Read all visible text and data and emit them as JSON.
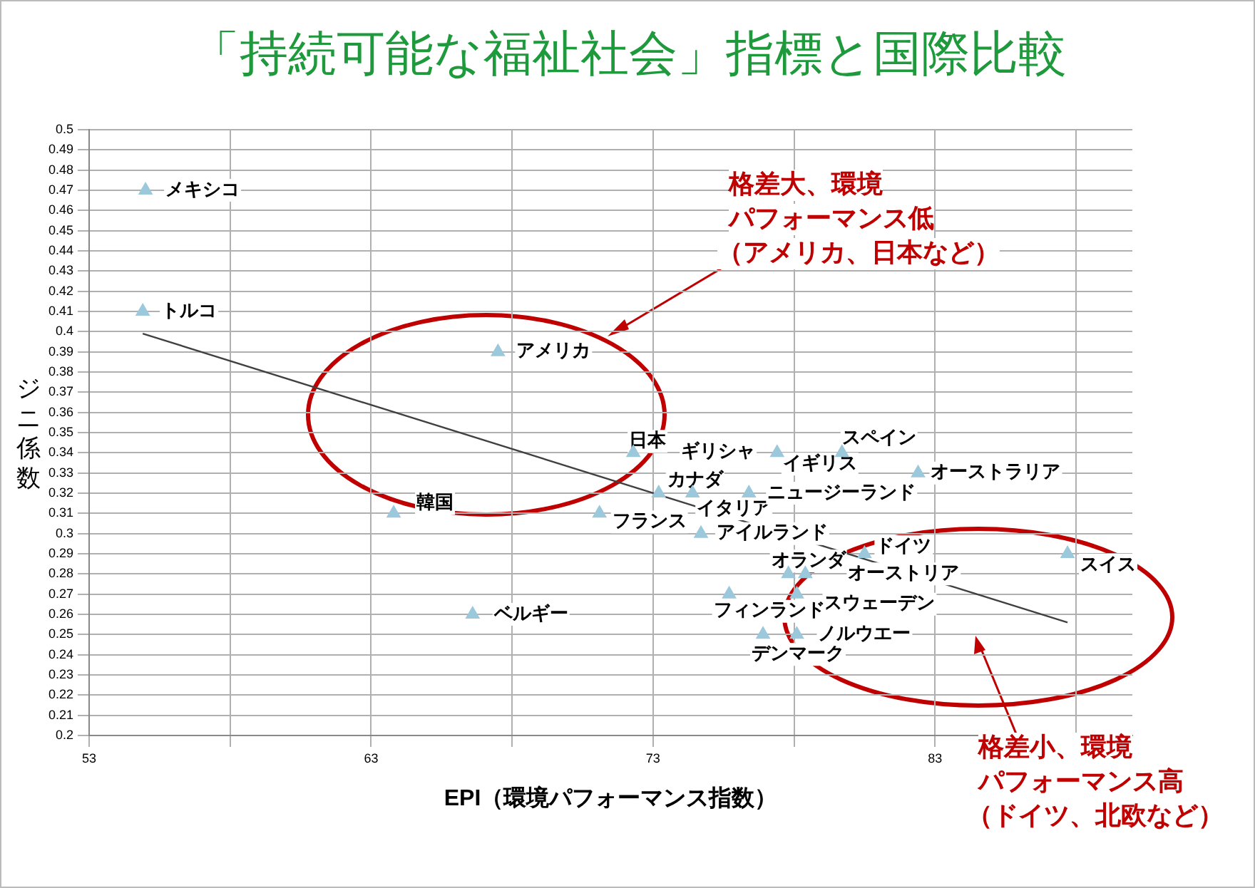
{
  "chart_data": {
    "type": "scatter",
    "title": "「持続可能な福祉社会」指標と国際比較",
    "xlabel": "EPI（環境パフォーマンス指数）",
    "ylabel": "ジニ係数",
    "series": [
      {
        "type": "scatter",
        "color": "#9cc8dc",
        "marker": "triangle",
        "x": [
          55.0,
          54.9,
          67.5,
          63.8,
          66.6,
          71.1,
          72.3,
          null,
          73.2,
          74.4,
          79.7,
          77.4,
          82.4,
          76.4,
          74.7,
          80.5,
          87.7,
          77.8,
          78.4,
          78.1,
          75.7,
          76.9,
          78.1
        ],
        "values": [
          0.47,
          0.41,
          0.39,
          0.31,
          0.26,
          0.31,
          0.34,
          null,
          0.32,
          0.32,
          0.34,
          0.34,
          0.33,
          0.32,
          0.3,
          0.29,
          0.29,
          0.28,
          0.28,
          0.27,
          0.27,
          0.25,
          0.25
        ]
      },
      {
        "type": "line",
        "color": "#404040",
        "marker": "none",
        "x": [
          54.9,
          87.7
        ],
        "values": [
          0.399,
          0.256
        ]
      }
    ],
    "xlim": [
      53,
      90
    ],
    "xticks": [
      53,
      {
        "value": 58,
        "label": null
      },
      63,
      {
        "value": 68,
        "label": null
      },
      73,
      {
        "value": 78,
        "label": null
      },
      83,
      {
        "value": 88,
        "label": null
      }
    ],
    "ylim": [
      0.2,
      0.5
    ],
    "yticks": [
      0.2,
      0.21,
      0.22,
      0.23,
      0.24,
      0.25,
      0.26,
      0.27,
      0.28,
      0.29,
      0.3,
      0.31,
      0.32,
      0.33,
      0.34,
      0.35,
      0.36,
      0.37,
      0.38,
      0.39,
      0.4,
      0.41,
      0.42,
      0.43,
      0.44,
      0.45,
      0.46,
      0.47,
      0.48,
      0.49,
      0.5
    ],
    "grid": true,
    "legend": false,
    "annotations": [
      {
        "text": "メキシコ",
        "x": 55.0,
        "y": 0.47
      },
      {
        "text": "トルコ",
        "x": 54.9,
        "y": 0.41
      },
      {
        "text": "アメリカ",
        "x": 67.5,
        "y": 0.39
      },
      {
        "text": "韓国",
        "x": 63.8,
        "y": 0.31
      },
      {
        "text": "ベルギー",
        "x": 66.6,
        "y": 0.26
      },
      {
        "text": "フランス",
        "x": 71.1,
        "y": 0.31
      },
      {
        "text": "日本",
        "x": 72.3,
        "y": 0.34
      },
      {
        "text": "ギリシャ",
        "x": 74.4,
        "y": 0.32
      },
      {
        "text": "カナダ",
        "x": 73.2,
        "y": 0.32
      },
      {
        "text": "イタリア",
        "x": 74.4,
        "y": 0.32
      },
      {
        "text": "スペイン",
        "x": 79.7,
        "y": 0.34
      },
      {
        "text": "イギリス",
        "x": 77.4,
        "y": 0.34
      },
      {
        "text": "オーストラリア",
        "x": 82.4,
        "y": 0.33
      },
      {
        "text": "ニュージーランド",
        "x": 76.4,
        "y": 0.32
      },
      {
        "text": "アイルランド",
        "x": 74.7,
        "y": 0.3
      },
      {
        "text": "ドイツ",
        "x": 80.5,
        "y": 0.29
      },
      {
        "text": "スイス",
        "x": 87.7,
        "y": 0.29
      },
      {
        "text": "オランダ",
        "x": 77.8,
        "y": 0.28
      },
      {
        "text": "オーストリア",
        "x": 78.4,
        "y": 0.28
      },
      {
        "text": "スウェーデン",
        "x": 78.1,
        "y": 0.27
      },
      {
        "text": "フィンランド",
        "x": 75.7,
        "y": 0.27
      },
      {
        "text": "デンマーク",
        "x": 76.9,
        "y": 0.25
      },
      {
        "text": "ノルウエー",
        "x": 78.1,
        "y": 0.25
      },
      "格差大、環境",
      "パフォーマンス低",
      "（アメリカ、日本など）",
      "格差小、環境",
      "パフォーマンス高",
      "（ドイツ、北欧など）"
    ]
  }
}
